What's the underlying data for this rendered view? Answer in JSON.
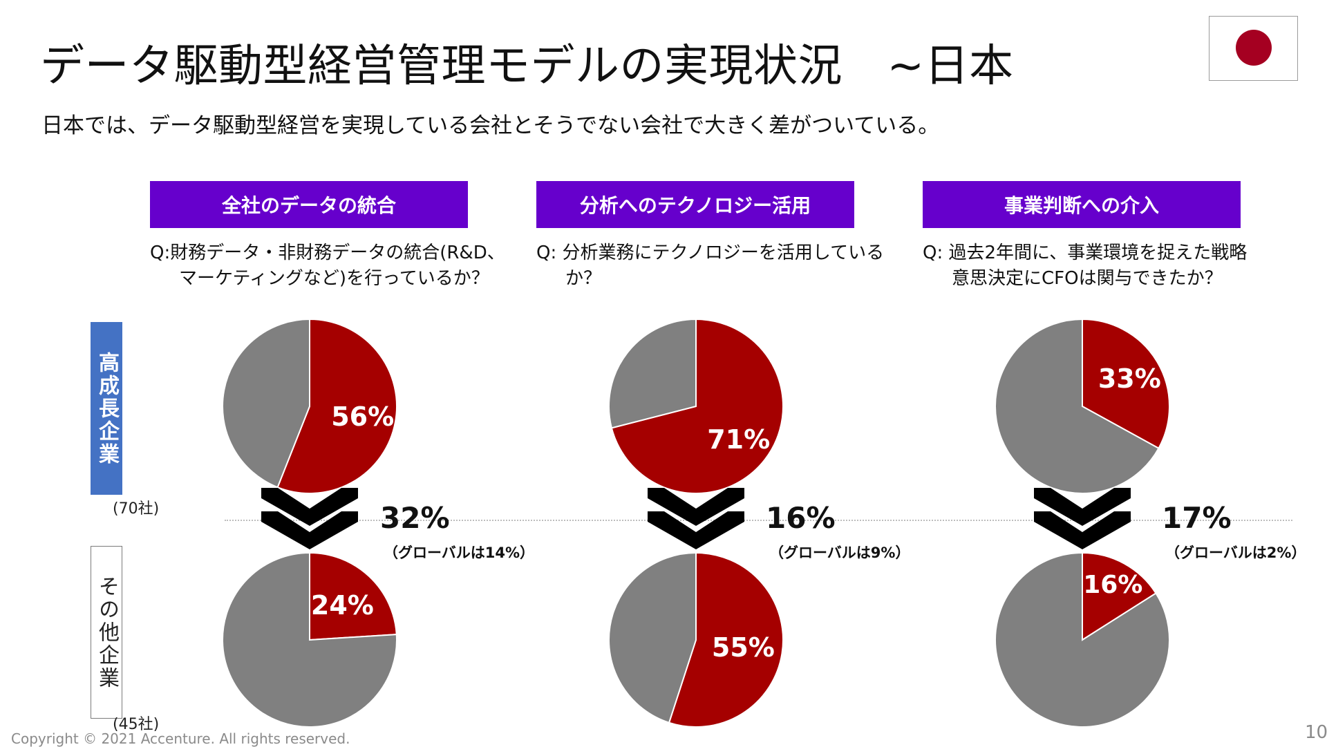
{
  "title": "データ駆動型経営管理モデルの実現状況　~日本",
  "subtitle": "日本では、データ駆動型経営を実現している会社とそうでない会社で大きく差がついている。",
  "flag": {
    "icon": "japan-flag-icon",
    "background": "#ffffff",
    "disc_color": "#a50021"
  },
  "colors": {
    "header": "#6600cc",
    "slice": "#a50000",
    "rest": "#808080",
    "high_label": "#4472c4"
  },
  "rows": {
    "high": {
      "label": "高成長企業",
      "count": "(70社)"
    },
    "other": {
      "label": "その他企業",
      "count": "(45社)"
    }
  },
  "sections": [
    {
      "header": "全社のデータの統合",
      "question": [
        "Q:財務データ・非財務データの統合(R&D、",
        "マーケティングなど)を行っているか？"
      ],
      "gap": "32%",
      "global_note": "（グローバルは14%）"
    },
    {
      "header": "分析へのテクノロジー活用",
      "question": [
        "Q:  分析業務にテクノロジーを活用している",
        "か？"
      ],
      "gap": "16%",
      "global_note": "（グローバルは9%）"
    },
    {
      "header": "事業判断への介入",
      "question": [
        "Q:  過去2年間に、事業環境を捉えた戦略",
        "意思決定にCFOは関与できたか？"
      ],
      "gap": "17%",
      "global_note": "（グローバルは2%）"
    }
  ],
  "chart_data": [
    {
      "type": "pie",
      "slices": [
        {
          "name": "",
          "value": 56,
          "label": "56%"
        },
        {
          "name": "",
          "value": 44,
          "label": ""
        }
      ]
    },
    {
      "type": "pie",
      "slices": [
        {
          "name": "",
          "value": 24,
          "label": "24%"
        },
        {
          "name": "",
          "value": 76,
          "label": ""
        }
      ]
    },
    {
      "type": "pie",
      "slices": [
        {
          "name": "",
          "value": 71,
          "label": "71%"
        },
        {
          "name": "",
          "value": 29,
          "label": ""
        }
      ]
    },
    {
      "type": "pie",
      "slices": [
        {
          "name": "",
          "value": 55,
          "label": "55%"
        },
        {
          "name": "",
          "value": 45,
          "label": ""
        }
      ]
    },
    {
      "type": "pie",
      "slices": [
        {
          "name": "",
          "value": 33,
          "label": "33%"
        },
        {
          "name": "",
          "value": 67,
          "label": ""
        }
      ]
    },
    {
      "type": "pie",
      "slices": [
        {
          "name": "",
          "value": 16,
          "label": "16%"
        },
        {
          "name": "",
          "value": 84,
          "label": ""
        }
      ]
    }
  ],
  "footer": {
    "copyright": "Copyright © 2021 Accenture. All rights reserved.",
    "page": "10"
  }
}
